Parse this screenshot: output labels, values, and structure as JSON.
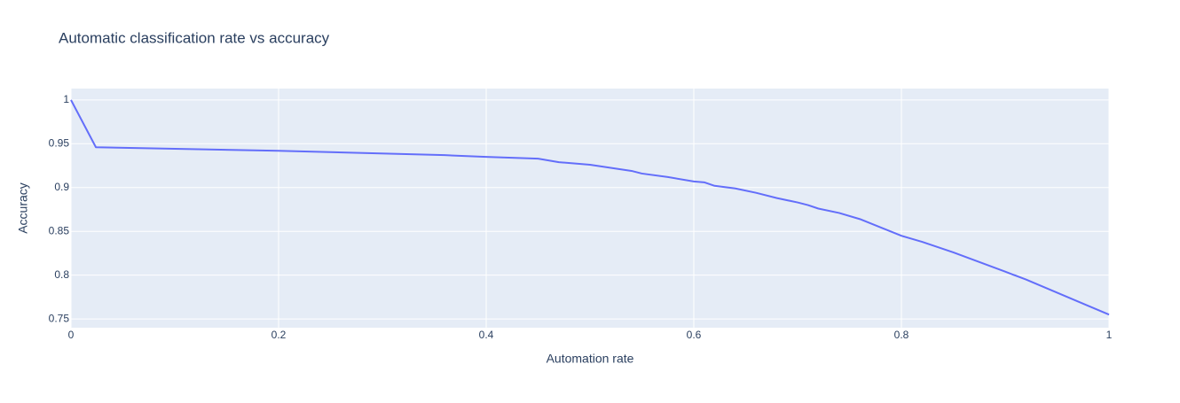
{
  "chart_data": {
    "type": "line",
    "title": "Automatic classification rate vs accuracy",
    "x_label": "Automation rate",
    "y_label": "Accuracy",
    "xlim": [
      0,
      1
    ],
    "ylim": [
      0.74,
      1.013
    ],
    "xticks": [
      0,
      0.2,
      0.4,
      0.6,
      0.8,
      1
    ],
    "yticks": [
      0.75,
      0.8,
      0.85,
      0.9,
      0.95,
      1
    ],
    "grid": true,
    "series": [
      {
        "color": "#636efa",
        "x": [
          0,
          0.024,
          0.2,
          0.36,
          0.4,
          0.45,
          0.47,
          0.5,
          0.54,
          0.55,
          0.575,
          0.6,
          0.61,
          0.62,
          0.64,
          0.66,
          0.68,
          0.7,
          0.71,
          0.72,
          0.74,
          0.76,
          0.8,
          0.82,
          0.85,
          0.875,
          0.9,
          0.92,
          0.95,
          0.98,
          1
        ],
        "values": [
          1,
          0.946,
          0.942,
          0.937,
          0.935,
          0.933,
          0.929,
          0.926,
          0.919,
          0.916,
          0.912,
          0.907,
          0.906,
          0.902,
          0.899,
          0.894,
          0.888,
          0.883,
          0.88,
          0.876,
          0.871,
          0.864,
          0.845,
          0.838,
          0.826,
          0.815,
          0.804,
          0.795,
          0.78,
          0.765,
          0.755
        ]
      }
    ]
  }
}
